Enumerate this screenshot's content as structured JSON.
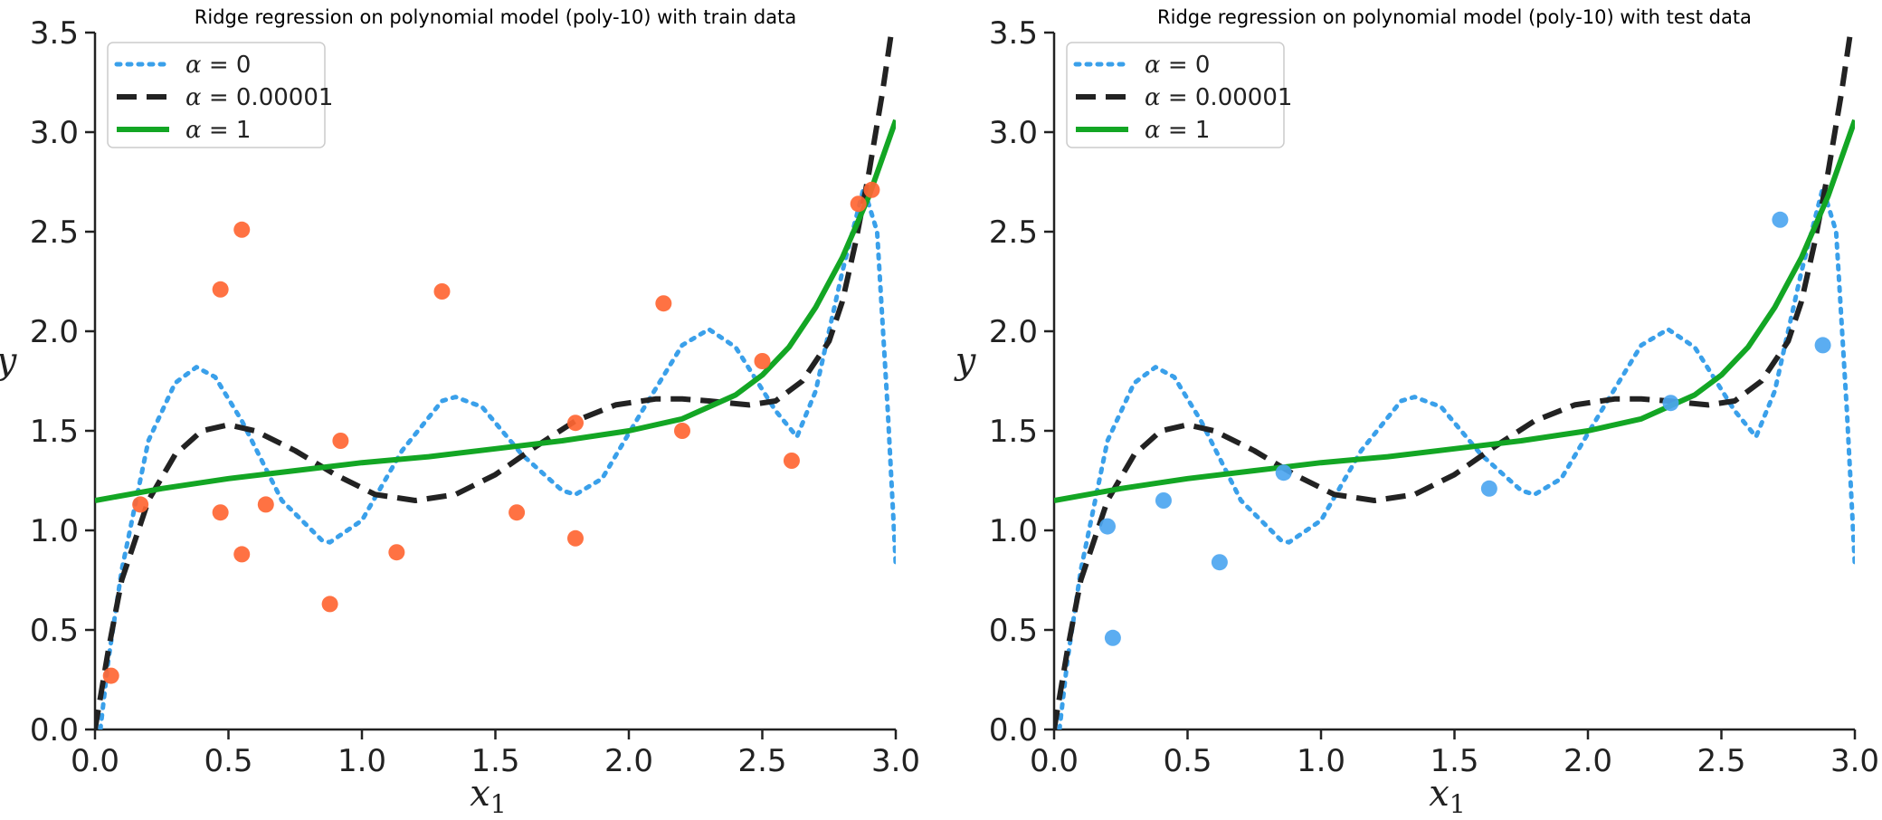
{
  "chart_data": [
    {
      "type": "scatter",
      "title": "Ridge regression on polynomial model (poly-10) with train data",
      "xlabel": "x",
      "xlabel_sub": "1",
      "ylabel": "y",
      "xlim": [
        0.0,
        3.0
      ],
      "ylim": [
        0.0,
        3.5
      ],
      "x_ticks": [
        0.0,
        0.5,
        1.0,
        1.5,
        2.0,
        2.5,
        3.0
      ],
      "x_tick_labels": [
        "0.0",
        "0.5",
        "1.0",
        "1.5",
        "2.0",
        "2.5",
        "3.0"
      ],
      "y_ticks": [
        0.0,
        0.5,
        1.0,
        1.5,
        2.0,
        2.5,
        3.0,
        3.5
      ],
      "y_tick_labels": [
        "0.0",
        "0.5",
        "1.0",
        "1.5",
        "2.0",
        "2.5",
        "3.0",
        "3.5"
      ],
      "grid": false,
      "legend_position": "top-left",
      "points_color": "#ff6633",
      "points": [
        {
          "x": 0.06,
          "y": 0.27
        },
        {
          "x": 0.17,
          "y": 1.13
        },
        {
          "x": 0.47,
          "y": 2.21
        },
        {
          "x": 0.47,
          "y": 1.09
        },
        {
          "x": 0.55,
          "y": 2.51
        },
        {
          "x": 0.55,
          "y": 0.88
        },
        {
          "x": 0.64,
          "y": 1.13
        },
        {
          "x": 0.88,
          "y": 0.63
        },
        {
          "x": 0.92,
          "y": 1.45
        },
        {
          "x": 1.13,
          "y": 0.89
        },
        {
          "x": 1.3,
          "y": 2.2
        },
        {
          "x": 1.58,
          "y": 1.09
        },
        {
          "x": 1.8,
          "y": 1.54
        },
        {
          "x": 1.8,
          "y": 0.96
        },
        {
          "x": 2.13,
          "y": 2.14
        },
        {
          "x": 2.2,
          "y": 1.5
        },
        {
          "x": 2.5,
          "y": 1.85
        },
        {
          "x": 2.61,
          "y": 1.35
        },
        {
          "x": 2.86,
          "y": 2.64
        },
        {
          "x": 2.91,
          "y": 2.71
        }
      ],
      "series": [
        {
          "name": "α = 0",
          "alpha_value": "0",
          "style": "dotted",
          "color": "#3aa0ea",
          "x": [
            0.02,
            0.05,
            0.1,
            0.2,
            0.3,
            0.38,
            0.45,
            0.55,
            0.7,
            0.85,
            0.88,
            1.0,
            1.15,
            1.3,
            1.35,
            1.45,
            1.6,
            1.75,
            1.8,
            1.9,
            2.05,
            2.2,
            2.3,
            2.4,
            2.55,
            2.63,
            2.7,
            2.8,
            2.88,
            2.93,
            2.97,
            3.0
          ],
          "y": [
            0.0,
            0.35,
            0.8,
            1.45,
            1.74,
            1.82,
            1.77,
            1.55,
            1.15,
            0.95,
            0.94,
            1.05,
            1.4,
            1.65,
            1.67,
            1.62,
            1.38,
            1.2,
            1.18,
            1.26,
            1.6,
            1.93,
            2.01,
            1.92,
            1.6,
            1.47,
            1.7,
            2.3,
            2.72,
            2.5,
            1.6,
            0.83
          ]
        },
        {
          "name": "α = 0.00001",
          "alpha_value": "0.00001",
          "style": "dashed",
          "color": "#222222",
          "x": [
            0.0,
            0.05,
            0.1,
            0.2,
            0.3,
            0.4,
            0.5,
            0.6,
            0.75,
            0.9,
            1.05,
            1.2,
            1.35,
            1.5,
            1.65,
            1.8,
            1.95,
            2.1,
            2.2,
            2.3,
            2.45,
            2.55,
            2.65,
            2.75,
            2.8,
            2.85,
            2.9,
            2.95,
            3.0
          ],
          "y": [
            0.0,
            0.4,
            0.75,
            1.15,
            1.38,
            1.5,
            1.53,
            1.5,
            1.4,
            1.28,
            1.18,
            1.15,
            1.18,
            1.28,
            1.42,
            1.55,
            1.63,
            1.66,
            1.66,
            1.65,
            1.63,
            1.65,
            1.75,
            1.95,
            2.15,
            2.45,
            2.8,
            3.2,
            3.65
          ]
        },
        {
          "name": "α = 1",
          "alpha_value": "1",
          "style": "solid",
          "color": "#13a624",
          "x": [
            0.0,
            0.25,
            0.5,
            0.75,
            1.0,
            1.25,
            1.5,
            1.75,
            2.0,
            2.2,
            2.4,
            2.5,
            2.6,
            2.7,
            2.8,
            2.9,
            3.0
          ],
          "y": [
            1.15,
            1.21,
            1.26,
            1.3,
            1.34,
            1.37,
            1.41,
            1.45,
            1.5,
            1.56,
            1.68,
            1.78,
            1.92,
            2.12,
            2.37,
            2.68,
            3.06
          ]
        }
      ]
    },
    {
      "type": "scatter",
      "title": "Ridge regression on polynomial model (poly-10) with test data",
      "xlabel": "x",
      "xlabel_sub": "1",
      "ylabel": "y",
      "xlim": [
        0.0,
        3.0
      ],
      "ylim": [
        0.0,
        3.5
      ],
      "x_ticks": [
        0.0,
        0.5,
        1.0,
        1.5,
        2.0,
        2.5,
        3.0
      ],
      "x_tick_labels": [
        "0.0",
        "0.5",
        "1.0",
        "1.5",
        "2.0",
        "2.5",
        "3.0"
      ],
      "y_ticks": [
        0.0,
        0.5,
        1.0,
        1.5,
        2.0,
        2.5,
        3.0,
        3.5
      ],
      "y_tick_labels": [
        "0.0",
        "0.5",
        "1.0",
        "1.5",
        "2.0",
        "2.5",
        "3.0",
        "3.5"
      ],
      "grid": false,
      "legend_position": "top-left",
      "points_color": "#4da6f0",
      "points": [
        {
          "x": 0.2,
          "y": 1.02
        },
        {
          "x": 0.22,
          "y": 0.46
        },
        {
          "x": 0.41,
          "y": 1.15
        },
        {
          "x": 0.62,
          "y": 0.84
        },
        {
          "x": 0.86,
          "y": 1.29
        },
        {
          "x": 1.63,
          "y": 1.21
        },
        {
          "x": 2.31,
          "y": 1.64
        },
        {
          "x": 2.72,
          "y": 2.56
        },
        {
          "x": 2.88,
          "y": 1.93
        }
      ],
      "series": [
        {
          "name": "α = 0",
          "alpha_value": "0",
          "style": "dotted",
          "color": "#3aa0ea",
          "x": [
            0.02,
            0.05,
            0.1,
            0.2,
            0.3,
            0.38,
            0.45,
            0.55,
            0.7,
            0.85,
            0.88,
            1.0,
            1.15,
            1.3,
            1.35,
            1.45,
            1.6,
            1.75,
            1.8,
            1.9,
            2.05,
            2.2,
            2.3,
            2.4,
            2.55,
            2.63,
            2.7,
            2.8,
            2.88,
            2.93,
            2.97,
            3.0
          ],
          "y": [
            0.0,
            0.35,
            0.8,
            1.45,
            1.74,
            1.82,
            1.77,
            1.55,
            1.15,
            0.95,
            0.94,
            1.05,
            1.4,
            1.65,
            1.67,
            1.62,
            1.38,
            1.2,
            1.18,
            1.26,
            1.6,
            1.93,
            2.01,
            1.92,
            1.6,
            1.47,
            1.7,
            2.3,
            2.72,
            2.5,
            1.6,
            0.83
          ]
        },
        {
          "name": "α = 0.00001",
          "alpha_value": "0.00001",
          "style": "dashed",
          "color": "#222222",
          "x": [
            0.0,
            0.05,
            0.1,
            0.2,
            0.3,
            0.4,
            0.5,
            0.6,
            0.75,
            0.9,
            1.05,
            1.2,
            1.35,
            1.5,
            1.65,
            1.8,
            1.95,
            2.1,
            2.2,
            2.3,
            2.45,
            2.55,
            2.65,
            2.75,
            2.8,
            2.85,
            2.9,
            2.95,
            3.0
          ],
          "y": [
            0.0,
            0.4,
            0.75,
            1.15,
            1.38,
            1.5,
            1.53,
            1.5,
            1.4,
            1.28,
            1.18,
            1.15,
            1.18,
            1.28,
            1.42,
            1.55,
            1.63,
            1.66,
            1.66,
            1.65,
            1.63,
            1.65,
            1.75,
            1.95,
            2.15,
            2.45,
            2.8,
            3.2,
            3.65
          ]
        },
        {
          "name": "α = 1",
          "alpha_value": "1",
          "style": "solid",
          "color": "#13a624",
          "x": [
            0.0,
            0.25,
            0.5,
            0.75,
            1.0,
            1.25,
            1.5,
            1.75,
            2.0,
            2.2,
            2.4,
            2.5,
            2.6,
            2.7,
            2.8,
            2.9,
            3.0
          ],
          "y": [
            1.15,
            1.21,
            1.26,
            1.3,
            1.34,
            1.37,
            1.41,
            1.45,
            1.5,
            1.56,
            1.68,
            1.78,
            1.92,
            2.12,
            2.37,
            2.68,
            3.06
          ]
        }
      ]
    }
  ]
}
